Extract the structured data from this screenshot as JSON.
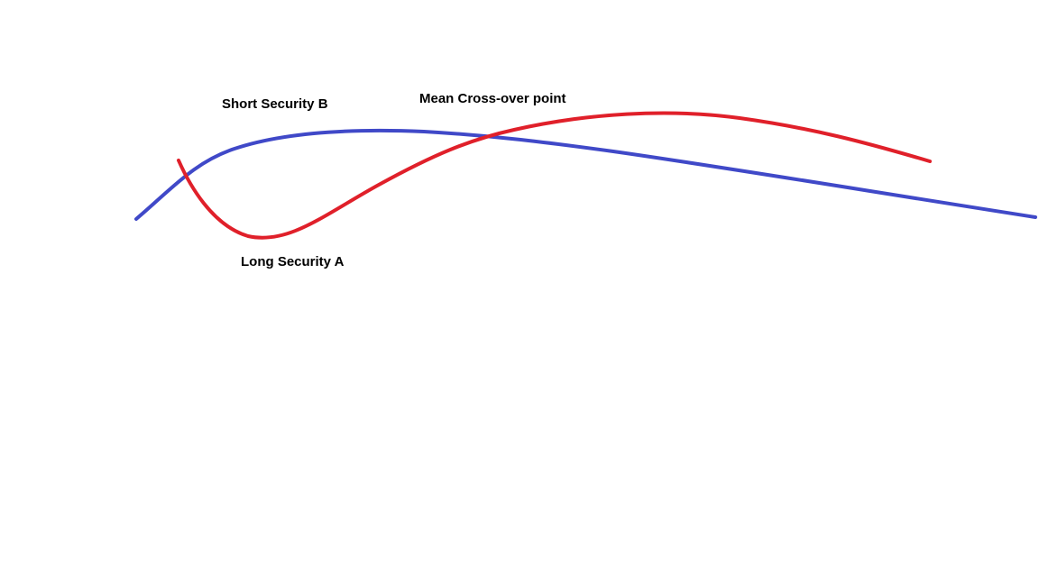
{
  "labels": {
    "short_security": "Short Security B",
    "mean_crossover": "Mean Cross-over point",
    "long_security": "Long Security A"
  },
  "curves": {
    "short_security_color": "#4049c8",
    "long_security_color": "#e0202a"
  }
}
